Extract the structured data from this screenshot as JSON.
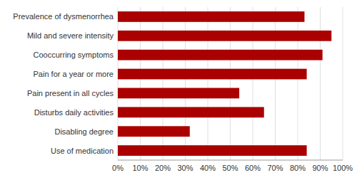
{
  "chart_data": {
    "type": "bar",
    "orientation": "horizontal",
    "categories": [
      "Use of medication",
      "Disabling degree",
      "Disturbs daily activities",
      "Pain present in all cycles",
      "Pain for a year or more",
      "Cooccurring symptoms",
      "Mild and severe intensity",
      "Prevalence of dysmenorrhea"
    ],
    "values": [
      84,
      32,
      65,
      54,
      84,
      91,
      95,
      83
    ],
    "color": "#AA0000",
    "xlim": [
      0,
      100
    ],
    "xticks": [
      {
        "value": 0,
        "label": "0%"
      },
      {
        "value": 10,
        "label": "10%"
      },
      {
        "value": 20,
        "label": "20%"
      },
      {
        "value": 30,
        "label": "30%"
      },
      {
        "value": 40,
        "label": "40%"
      },
      {
        "value": 50,
        "label": "50%"
      },
      {
        "value": 60,
        "label": "60%"
      },
      {
        "value": 70,
        "label": "70%"
      },
      {
        "value": 80,
        "label": "80%"
      },
      {
        "value": 90,
        "label": "90%"
      },
      {
        "value": 100,
        "label": "100%"
      }
    ],
    "grid": true
  }
}
